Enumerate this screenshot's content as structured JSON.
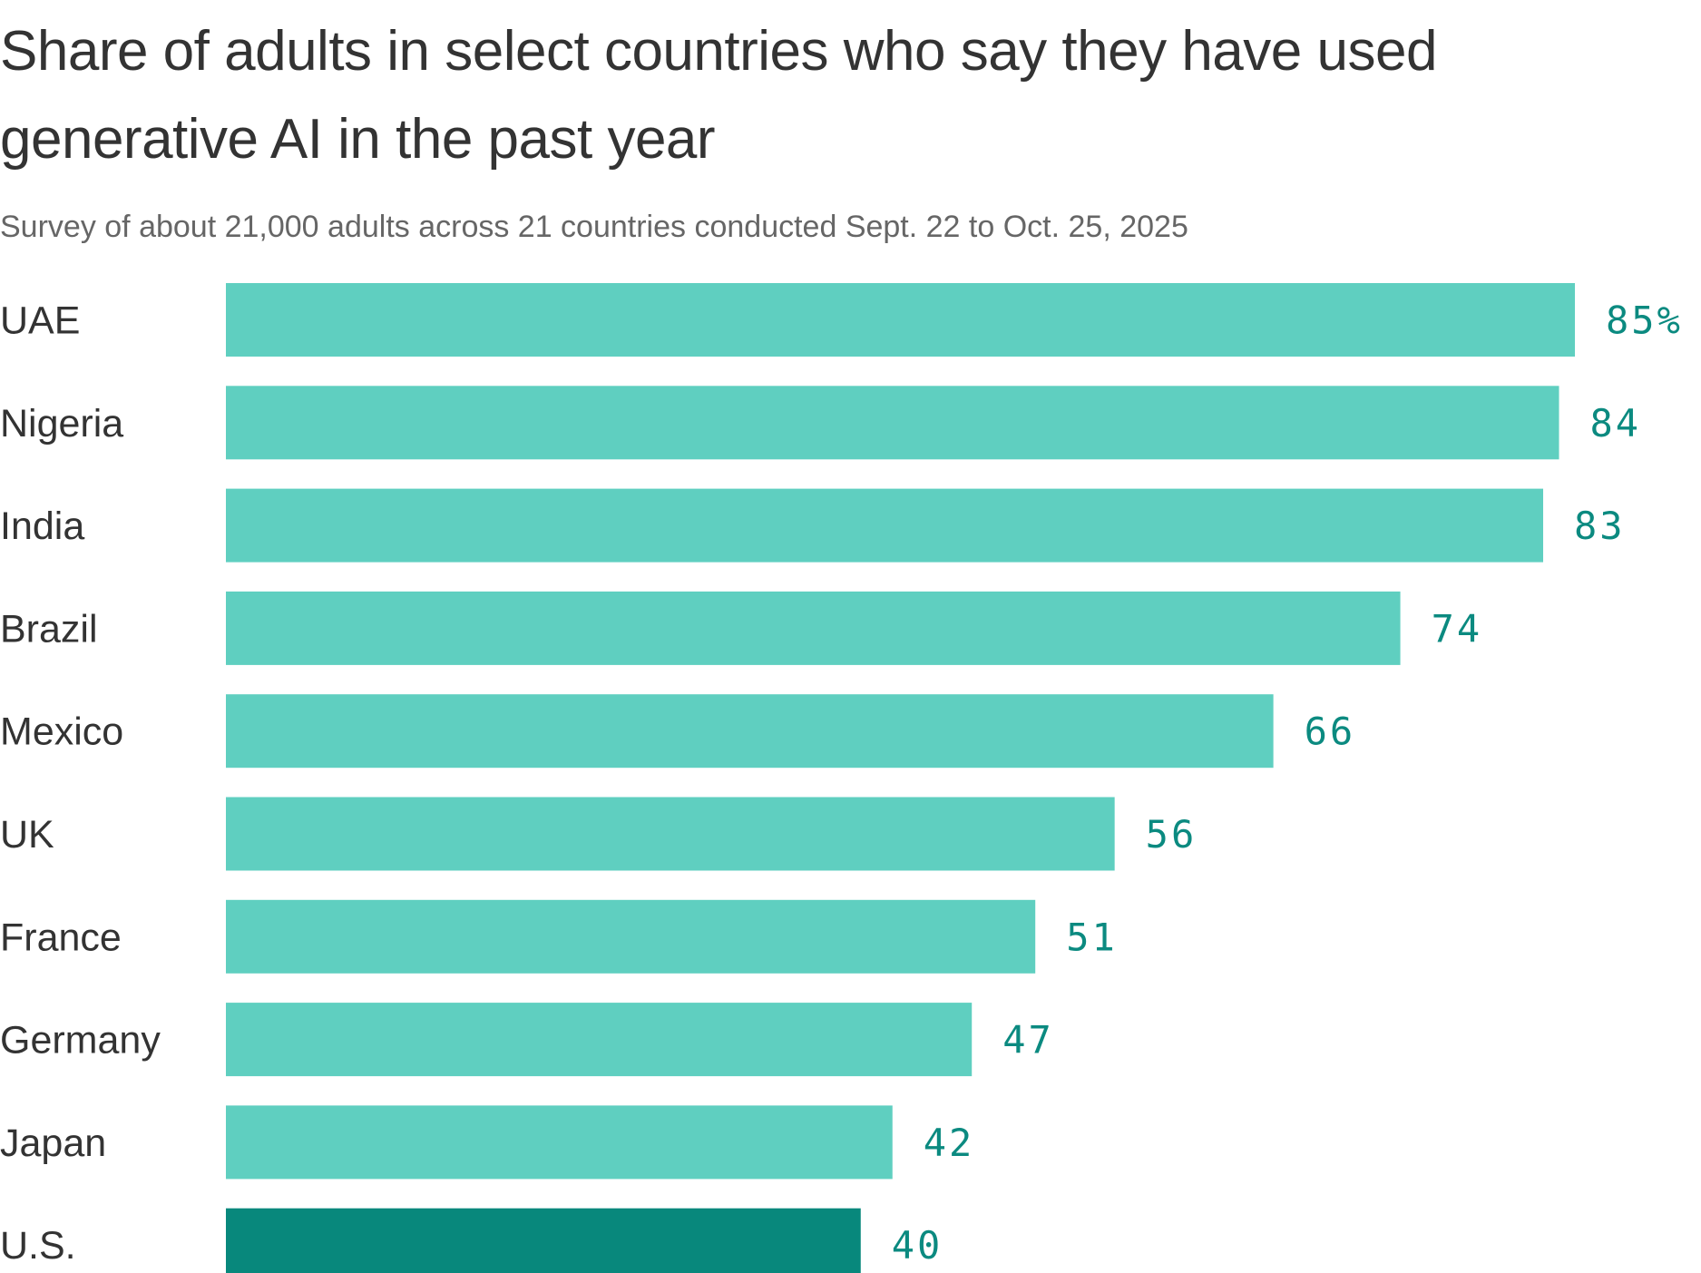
{
  "chart_data": {
    "type": "bar",
    "orientation": "horizontal",
    "title": "Share of adults in select countries who say they have used generative AI in the past year",
    "subtitle": "Survey of about 21,000 adults across 21 countries conducted Sept. 22 to Oct. 25, 2025",
    "categories": [
      "UAE",
      "Nigeria",
      "India",
      "Brazil",
      "Mexico",
      "UK",
      "France",
      "Germany",
      "Japan",
      "U.S."
    ],
    "values": [
      85,
      84,
      83,
      74,
      66,
      56,
      51,
      47,
      42,
      40
    ],
    "value_labels": [
      "85%",
      "84",
      "83",
      "74",
      "66",
      "56",
      "51",
      "47",
      "42",
      "40"
    ],
    "highlight_category": "U.S.",
    "xlim": [
      0,
      85
    ],
    "xlabel": "",
    "ylabel": "",
    "grid": false
  },
  "colors": {
    "bar": "#5fcfc0",
    "highlight_bar": "#08887c",
    "value_text": "#0b8a80",
    "label_text": "#333333"
  }
}
